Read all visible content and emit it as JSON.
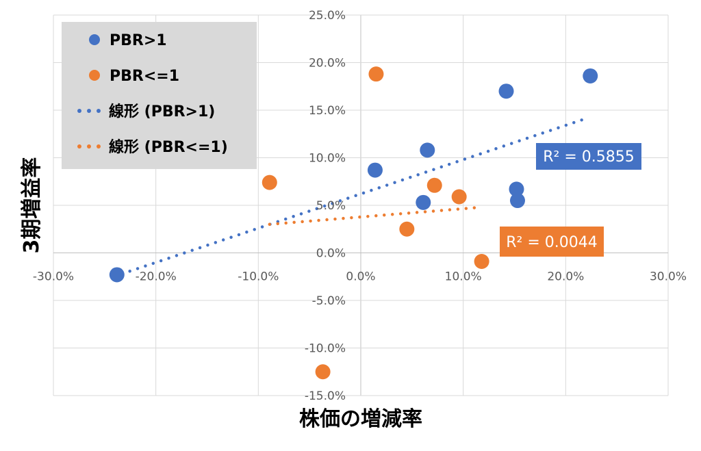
{
  "chart_data": {
    "type": "scatter",
    "xlabel": "株価の増減率",
    "ylabel": "3期増益率",
    "xlim": [
      -30,
      30
    ],
    "ylim": [
      -15,
      25
    ],
    "xticks": [
      -30,
      -20,
      -10,
      0,
      10,
      20,
      30
    ],
    "yticks": [
      -15,
      -10,
      -5,
      0,
      5,
      10,
      15,
      20,
      25
    ],
    "xtick_labels": [
      "-30.0%",
      "-20.0%",
      "-10.0%",
      "0.0%",
      "10.0%",
      "20.0%",
      "30.0%"
    ],
    "ytick_labels": [
      "-15.0%",
      "-10.0%",
      "-5.0%",
      "0.0%",
      "5.0%",
      "10.0%",
      "15.0%",
      "20.0%",
      "25.0%"
    ],
    "grid": true,
    "legend_position": "top-left",
    "series": [
      {
        "name": "PBR>1",
        "color": "#4472c4",
        "x": [
          -23.8,
          1.4,
          6.5,
          6.1,
          14.2,
          22.4,
          15.2,
          15.3
        ],
        "y": [
          -2.3,
          8.7,
          10.8,
          5.3,
          17.0,
          18.6,
          6.7,
          5.5
        ]
      },
      {
        "name": "PBR<=1",
        "color": "#ed7d31",
        "x": [
          1.5,
          -8.9,
          7.2,
          9.6,
          4.5,
          11.8,
          -3.7
        ],
        "y": [
          18.8,
          7.4,
          7.1,
          5.9,
          2.5,
          -0.9,
          -12.5
        ]
      }
    ],
    "trendlines": [
      {
        "name": "線形 (PBR>1)",
        "color": "#4472c4",
        "x": [
          -23.3,
          22.2
        ],
        "y": [
          -2.2,
          14.2
        ],
        "r2_label": "R² = 0.5855"
      },
      {
        "name": "線形 (PBR<=1)",
        "color": "#ed7d31",
        "x": [
          -8.9,
          11.8
        ],
        "y": [
          3.0,
          4.8
        ],
        "r2_label": "R² = 0.0044"
      }
    ]
  }
}
